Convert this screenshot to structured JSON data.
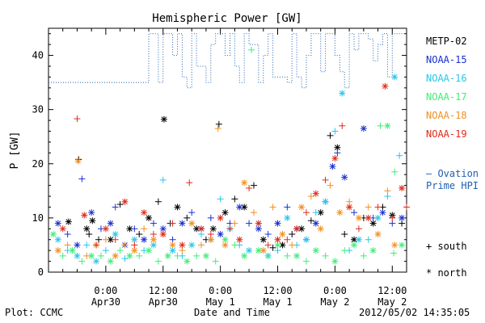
{
  "chart_data": {
    "type": "scatter",
    "title": "Hemispheric Power [GW]",
    "ylabel": "P [GW]",
    "xlabel": "Date and Time",
    "ylim": [
      0,
      45
    ],
    "yticks": [
      0,
      10,
      20,
      30,
      40
    ],
    "xlim_hours": [
      -12,
      63
    ],
    "xticks": [
      {
        "h": 0,
        "line1": "0:00",
        "line2": "Apr30"
      },
      {
        "h": 12,
        "line1": "12:00",
        "line2": "Apr30"
      },
      {
        "h": 24,
        "line1": "0:00",
        "line2": "May 1"
      },
      {
        "h": 36,
        "line1": "12:00",
        "line2": "May 1"
      },
      {
        "h": 48,
        "line1": "0:00",
        "line2": "May 2"
      },
      {
        "h": 60,
        "line1": "12:00",
        "line2": "May 2"
      }
    ],
    "series": [
      {
        "name": "METP-02",
        "color": "#000000",
        "points": [
          [
            -7.8,
            9.3
          ],
          [
            -5.7,
            20.8
          ],
          [
            -4,
            8
          ],
          [
            -3.5,
            7
          ],
          [
            -2.8,
            9.5
          ],
          [
            -1.5,
            6
          ],
          [
            1,
            6
          ],
          [
            3,
            12.5
          ],
          [
            5,
            8
          ],
          [
            7,
            7
          ],
          [
            9,
            10
          ],
          [
            11,
            13
          ],
          [
            12.2,
            28.2
          ],
          [
            13.5,
            9
          ],
          [
            15,
            12
          ],
          [
            17,
            10
          ],
          [
            19,
            8
          ],
          [
            21,
            6
          ],
          [
            22.5,
            8
          ],
          [
            23.7,
            27.3
          ],
          [
            25,
            11
          ],
          [
            27,
            13.5
          ],
          [
            29,
            12
          ],
          [
            31,
            16
          ],
          [
            33,
            6
          ],
          [
            35,
            4.5
          ],
          [
            37,
            5
          ],
          [
            39,
            7
          ],
          [
            41,
            8
          ],
          [
            43,
            9.5
          ],
          [
            45,
            11
          ],
          [
            47,
            25.2
          ],
          [
            48.5,
            23
          ],
          [
            50,
            7
          ],
          [
            52,
            6
          ],
          [
            54,
            10
          ],
          [
            56,
            9
          ],
          [
            58,
            12
          ],
          [
            60,
            10.5
          ],
          [
            62,
            9
          ]
        ]
      },
      {
        "name": "NOAA-15",
        "color": "#1a2fd0",
        "points": [
          [
            -10,
            9
          ],
          [
            -8,
            7
          ],
          [
            -6,
            5
          ],
          [
            -5,
            17.2
          ],
          [
            -3,
            11
          ],
          [
            -1,
            8
          ],
          [
            1,
            9
          ],
          [
            2,
            12
          ],
          [
            4,
            5
          ],
          [
            6,
            8
          ],
          [
            8,
            6
          ],
          [
            10,
            9
          ],
          [
            12,
            8
          ],
          [
            14,
            6
          ],
          [
            16,
            9
          ],
          [
            18,
            11
          ],
          [
            20,
            8
          ],
          [
            22,
            10
          ],
          [
            24,
            7
          ],
          [
            26,
            9
          ],
          [
            28,
            12
          ],
          [
            30,
            9
          ],
          [
            32,
            8
          ],
          [
            34,
            7
          ],
          [
            36,
            9
          ],
          [
            38,
            12
          ],
          [
            40,
            8
          ],
          [
            42,
            6
          ],
          [
            44,
            9
          ],
          [
            46,
            13
          ],
          [
            47.5,
            19.5
          ],
          [
            48.5,
            22
          ],
          [
            50,
            17.5
          ],
          [
            52,
            11
          ],
          [
            54,
            26.5
          ],
          [
            56,
            10
          ],
          [
            58,
            11
          ],
          [
            60,
            9
          ],
          [
            62,
            10
          ]
        ]
      },
      {
        "name": "NOAA-16",
        "color": "#28c6ea",
        "points": [
          [
            -10,
            6
          ],
          [
            -8,
            4
          ],
          [
            -6,
            3
          ],
          [
            -4,
            5
          ],
          [
            -2,
            2
          ],
          [
            0,
            4
          ],
          [
            2,
            7
          ],
          [
            4,
            2.5
          ],
          [
            6,
            6
          ],
          [
            8,
            4
          ],
          [
            10,
            5
          ],
          [
            12,
            17
          ],
          [
            14,
            4
          ],
          [
            16,
            3
          ],
          [
            18,
            5
          ],
          [
            20,
            7
          ],
          [
            22,
            6
          ],
          [
            24,
            13.5
          ],
          [
            26,
            8
          ],
          [
            28,
            5
          ],
          [
            30,
            4
          ],
          [
            32,
            9
          ],
          [
            34,
            3
          ],
          [
            36,
            4
          ],
          [
            38,
            10
          ],
          [
            40,
            5
          ],
          [
            42,
            6
          ],
          [
            44,
            11
          ],
          [
            46,
            13
          ],
          [
            48,
            26
          ],
          [
            49.5,
            33
          ],
          [
            51,
            4
          ],
          [
            53,
            6
          ],
          [
            55,
            6
          ],
          [
            57,
            10
          ],
          [
            59,
            14
          ],
          [
            60.5,
            36
          ],
          [
            61.5,
            21.5
          ]
        ]
      },
      {
        "name": "NOAA-17",
        "color": "#3dee78",
        "points": [
          [
            -11,
            7
          ],
          [
            -9,
            3
          ],
          [
            -7,
            4
          ],
          [
            -5,
            2
          ],
          [
            -3,
            3
          ],
          [
            -1,
            3
          ],
          [
            1,
            2
          ],
          [
            3,
            4
          ],
          [
            5,
            3
          ],
          [
            7,
            3
          ],
          [
            9,
            4
          ],
          [
            11,
            2
          ],
          [
            13,
            3
          ],
          [
            15,
            3
          ],
          [
            17,
            2
          ],
          [
            19,
            3
          ],
          [
            21,
            3
          ],
          [
            23,
            2
          ],
          [
            25,
            6
          ],
          [
            27,
            5
          ],
          [
            29,
            3
          ],
          [
            30.5,
            41
          ],
          [
            32,
            4
          ],
          [
            34,
            3
          ],
          [
            36,
            5
          ],
          [
            38,
            3
          ],
          [
            40,
            3
          ],
          [
            42,
            2
          ],
          [
            44,
            4
          ],
          [
            46,
            3
          ],
          [
            48,
            2
          ],
          [
            50,
            4
          ],
          [
            52,
            5
          ],
          [
            54,
            3
          ],
          [
            56,
            4
          ],
          [
            57.5,
            27
          ],
          [
            59,
            27
          ],
          [
            60.5,
            18.5
          ],
          [
            62,
            5
          ],
          [
            60.3,
            3.5
          ]
        ]
      },
      {
        "name": "NOAA-18",
        "color": "#f09020",
        "points": [
          [
            -10,
            4
          ],
          [
            -8,
            5
          ],
          [
            -5.8,
            20.5
          ],
          [
            -4,
            3
          ],
          [
            -2,
            5
          ],
          [
            0,
            6
          ],
          [
            2,
            3
          ],
          [
            4,
            5
          ],
          [
            6,
            4
          ],
          [
            8,
            8
          ],
          [
            10,
            6
          ],
          [
            12,
            7
          ],
          [
            14,
            5
          ],
          [
            16,
            4
          ],
          [
            18,
            9
          ],
          [
            20,
            5
          ],
          [
            22,
            6
          ],
          [
            23.5,
            26.5
          ],
          [
            25,
            5
          ],
          [
            27,
            9
          ],
          [
            29,
            16.5
          ],
          [
            31,
            11
          ],
          [
            33,
            4
          ],
          [
            35,
            12
          ],
          [
            37,
            7
          ],
          [
            39,
            5
          ],
          [
            41,
            12
          ],
          [
            43,
            14
          ],
          [
            45,
            8
          ],
          [
            47,
            16
          ],
          [
            49,
            11
          ],
          [
            51,
            13
          ],
          [
            53,
            10
          ],
          [
            55,
            12
          ],
          [
            57,
            7
          ],
          [
            59,
            15
          ],
          [
            60.5,
            5
          ]
        ]
      },
      {
        "name": "NOAA-19",
        "color": "#e02a1a",
        "points": [
          [
            -9,
            8
          ],
          [
            -6,
            28.3
          ],
          [
            -4.5,
            10.5
          ],
          [
            -2,
            5
          ],
          [
            0,
            8
          ],
          [
            2,
            6
          ],
          [
            4,
            13
          ],
          [
            6,
            5
          ],
          [
            8,
            11
          ],
          [
            10,
            7
          ],
          [
            12,
            7
          ],
          [
            14,
            9
          ],
          [
            16,
            5
          ],
          [
            17.5,
            16.5
          ],
          [
            20,
            8
          ],
          [
            22,
            7
          ],
          [
            24,
            10
          ],
          [
            26,
            8
          ],
          [
            28,
            6
          ],
          [
            30,
            15.5
          ],
          [
            32,
            9
          ],
          [
            34,
            5
          ],
          [
            36,
            6
          ],
          [
            38,
            6
          ],
          [
            40,
            8
          ],
          [
            42,
            11
          ],
          [
            44,
            14.5
          ],
          [
            46,
            17
          ],
          [
            48,
            21
          ],
          [
            49.5,
            27
          ],
          [
            51,
            12
          ],
          [
            53,
            8
          ],
          [
            55,
            10
          ],
          [
            57,
            12
          ],
          [
            58.5,
            34.3
          ],
          [
            60,
            10
          ],
          [
            62,
            15.5
          ],
          [
            63,
            12
          ]
        ]
      }
    ],
    "ovation_series": {
      "name": "Ovation Prime HPI",
      "color": "#1f5fb0",
      "points": [
        [
          -12,
          35
        ],
        [
          9,
          35
        ],
        [
          9,
          44
        ],
        [
          11,
          44
        ],
        [
          11,
          35
        ],
        [
          12,
          35
        ],
        [
          12,
          44
        ],
        [
          14,
          44
        ],
        [
          14,
          40
        ],
        [
          15,
          40
        ],
        [
          15,
          44
        ],
        [
          16,
          44
        ],
        [
          16,
          36
        ],
        [
          17,
          36
        ],
        [
          17,
          34
        ],
        [
          18,
          34
        ],
        [
          18,
          44
        ],
        [
          19,
          44
        ],
        [
          19,
          38
        ],
        [
          21,
          38
        ],
        [
          21,
          35
        ],
        [
          22,
          35
        ],
        [
          22,
          42
        ],
        [
          23,
          42
        ],
        [
          23,
          44
        ],
        [
          25,
          44
        ],
        [
          25,
          40
        ],
        [
          26,
          40
        ],
        [
          26,
          44
        ],
        [
          27,
          44
        ],
        [
          27,
          38
        ],
        [
          28,
          38
        ],
        [
          28,
          35
        ],
        [
          29,
          35
        ],
        [
          29,
          44
        ],
        [
          30,
          44
        ],
        [
          30,
          42
        ],
        [
          32,
          42
        ],
        [
          32,
          35
        ],
        [
          33,
          35
        ],
        [
          33,
          40
        ],
        [
          34,
          40
        ],
        [
          34,
          44
        ],
        [
          35,
          44
        ],
        [
          35,
          36
        ],
        [
          38,
          36
        ],
        [
          38,
          35
        ],
        [
          39,
          35
        ],
        [
          39,
          44
        ],
        [
          40,
          44
        ],
        [
          40,
          36
        ],
        [
          41,
          36
        ],
        [
          41,
          34
        ],
        [
          42,
          34
        ],
        [
          42,
          40
        ],
        [
          43,
          40
        ],
        [
          43,
          44
        ],
        [
          45,
          44
        ],
        [
          45,
          37
        ],
        [
          46,
          37
        ],
        [
          46,
          44
        ],
        [
          47,
          44
        ],
        [
          47,
          44
        ],
        [
          48,
          44
        ],
        [
          48,
          40
        ],
        [
          49,
          40
        ],
        [
          49,
          37
        ],
        [
          50,
          37
        ],
        [
          50,
          34
        ],
        [
          51,
          34
        ],
        [
          51,
          44
        ],
        [
          52,
          44
        ],
        [
          52,
          41
        ],
        [
          53,
          41
        ],
        [
          53,
          44
        ],
        [
          55,
          44
        ],
        [
          55,
          43
        ],
        [
          56,
          43
        ],
        [
          56,
          39
        ],
        [
          57,
          39
        ],
        [
          57,
          42
        ],
        [
          58,
          42
        ],
        [
          58,
          44
        ],
        [
          59,
          44
        ],
        [
          59,
          36
        ],
        [
          60,
          36
        ],
        [
          60,
          44
        ],
        [
          61,
          44
        ],
        [
          61,
          44
        ],
        [
          63,
          44
        ]
      ]
    },
    "legend_placement": "right"
  },
  "ui": {
    "symbol_key_south": "+ south",
    "symbol_key_north": "* north",
    "ovation_label_line1": "— Ovation",
    "ovation_label_line2": "Prime HPI",
    "footer_left": "Plot: CCMC",
    "footer_center": "Date and Time",
    "footer_right": "2012/05/02 14:35:05"
  }
}
